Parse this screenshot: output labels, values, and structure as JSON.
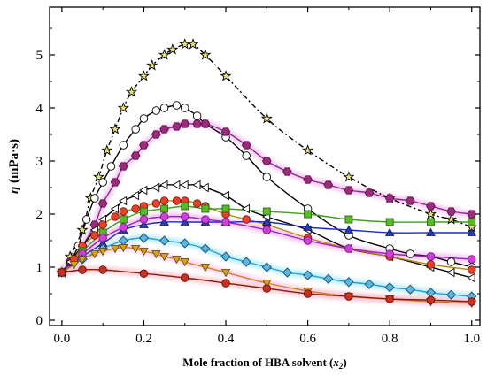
{
  "chart_data": {
    "type": "scatter",
    "xlabel": {
      "pre": "Mole fraction of HBA solvent (",
      "var": "x",
      "sub": "2",
      "post": ")"
    },
    "ylabel": {
      "sym": "η",
      "unit": " (mPa·s)"
    },
    "xlim": [
      -0.03,
      1.02
    ],
    "ylim": [
      -0.1,
      5.9
    ],
    "xticks": [
      "0.0",
      "0.2",
      "0.4",
      "0.6",
      "0.8",
      "1.0"
    ],
    "yticks": [
      "0",
      "1",
      "2",
      "3",
      "4",
      "5"
    ],
    "grid": false,
    "legend": "none",
    "series": [
      {
        "marker": "star",
        "fill": "#e8e27a",
        "stroke": "#000000",
        "line": "#000000",
        "dash": "6,3,2,3",
        "glow": "",
        "points": [
          [
            0.0,
            0.9
          ],
          [
            0.02,
            1.2
          ],
          [
            0.05,
            1.7
          ],
          [
            0.07,
            2.3
          ],
          [
            0.09,
            2.7
          ],
          [
            0.11,
            3.2
          ],
          [
            0.13,
            3.6
          ],
          [
            0.15,
            4.0
          ],
          [
            0.17,
            4.3
          ],
          [
            0.2,
            4.6
          ],
          [
            0.22,
            4.8
          ],
          [
            0.25,
            5.0
          ],
          [
            0.27,
            5.1
          ],
          [
            0.3,
            5.2
          ],
          [
            0.32,
            5.2
          ],
          [
            0.35,
            5.0
          ],
          [
            0.4,
            4.6
          ],
          [
            0.5,
            3.8
          ],
          [
            0.6,
            3.2
          ],
          [
            0.7,
            2.7
          ],
          [
            0.8,
            2.3
          ],
          [
            0.9,
            2.0
          ],
          [
            0.95,
            1.9
          ],
          [
            1.0,
            1.75
          ]
        ]
      },
      {
        "marker": "circle",
        "fill": "#ffffff",
        "stroke": "#000000",
        "line": "#000000",
        "dash": "",
        "glow": "",
        "points": [
          [
            0.0,
            0.9
          ],
          [
            0.02,
            1.1
          ],
          [
            0.04,
            1.4
          ],
          [
            0.06,
            1.9
          ],
          [
            0.08,
            2.3
          ],
          [
            0.1,
            2.6
          ],
          [
            0.12,
            2.9
          ],
          [
            0.15,
            3.3
          ],
          [
            0.18,
            3.6
          ],
          [
            0.2,
            3.8
          ],
          [
            0.23,
            3.95
          ],
          [
            0.25,
            4.0
          ],
          [
            0.28,
            4.05
          ],
          [
            0.3,
            4.0
          ],
          [
            0.33,
            3.85
          ],
          [
            0.35,
            3.7
          ],
          [
            0.4,
            3.45
          ],
          [
            0.45,
            3.1
          ],
          [
            0.5,
            2.7
          ],
          [
            0.6,
            2.1
          ],
          [
            0.7,
            1.6
          ],
          [
            0.8,
            1.35
          ],
          [
            0.85,
            1.25
          ],
          [
            0.9,
            1.2
          ],
          [
            0.95,
            1.1
          ],
          [
            1.0,
            1.0
          ]
        ]
      },
      {
        "marker": "hexagon",
        "fill": "#9c2b7c",
        "stroke": "#5a1448",
        "line": "#8a2a8a",
        "dash": "",
        "glow": "#f2b8ec",
        "points": [
          [
            0.0,
            0.9
          ],
          [
            0.02,
            1.1
          ],
          [
            0.05,
            1.4
          ],
          [
            0.08,
            1.8
          ],
          [
            0.1,
            2.2
          ],
          [
            0.13,
            2.6
          ],
          [
            0.15,
            2.9
          ],
          [
            0.18,
            3.1
          ],
          [
            0.2,
            3.3
          ],
          [
            0.23,
            3.5
          ],
          [
            0.25,
            3.6
          ],
          [
            0.28,
            3.65
          ],
          [
            0.3,
            3.7
          ],
          [
            0.33,
            3.7
          ],
          [
            0.35,
            3.7
          ],
          [
            0.4,
            3.55
          ],
          [
            0.45,
            3.3
          ],
          [
            0.5,
            3.0
          ],
          [
            0.55,
            2.8
          ],
          [
            0.6,
            2.65
          ],
          [
            0.65,
            2.55
          ],
          [
            0.7,
            2.45
          ],
          [
            0.75,
            2.4
          ],
          [
            0.8,
            2.3
          ],
          [
            0.85,
            2.25
          ],
          [
            0.9,
            2.15
          ],
          [
            0.95,
            2.05
          ],
          [
            1.0,
            2.0
          ]
        ]
      },
      {
        "marker": "triangle-left",
        "fill": "#ffffff",
        "stroke": "#000000",
        "line": "#000000",
        "dash": "",
        "glow": "",
        "points": [
          [
            0.0,
            0.9
          ],
          [
            0.02,
            1.1
          ],
          [
            0.05,
            1.4
          ],
          [
            0.08,
            1.7
          ],
          [
            0.1,
            1.9
          ],
          [
            0.13,
            2.1
          ],
          [
            0.15,
            2.25
          ],
          [
            0.18,
            2.35
          ],
          [
            0.2,
            2.45
          ],
          [
            0.23,
            2.5
          ],
          [
            0.25,
            2.55
          ],
          [
            0.28,
            2.55
          ],
          [
            0.3,
            2.55
          ],
          [
            0.33,
            2.55
          ],
          [
            0.35,
            2.5
          ],
          [
            0.4,
            2.35
          ],
          [
            0.45,
            2.1
          ],
          [
            0.5,
            1.95
          ],
          [
            0.6,
            1.7
          ],
          [
            0.7,
            1.35
          ],
          [
            0.8,
            1.2
          ],
          [
            0.9,
            1.0
          ],
          [
            0.95,
            0.9
          ],
          [
            1.0,
            0.8
          ]
        ]
      },
      {
        "marker": "circle",
        "fill": "#e8402a",
        "stroke": "#7a1a0a",
        "line": "#b8860b",
        "dash": "",
        "glow": "",
        "points": [
          [
            0.0,
            0.9
          ],
          [
            0.03,
            1.15
          ],
          [
            0.05,
            1.4
          ],
          [
            0.08,
            1.6
          ],
          [
            0.1,
            1.8
          ],
          [
            0.13,
            1.95
          ],
          [
            0.15,
            2.05
          ],
          [
            0.18,
            2.1
          ],
          [
            0.2,
            2.15
          ],
          [
            0.23,
            2.2
          ],
          [
            0.25,
            2.25
          ],
          [
            0.28,
            2.25
          ],
          [
            0.3,
            2.25
          ],
          [
            0.33,
            2.2
          ],
          [
            0.35,
            2.15
          ],
          [
            0.4,
            2.0
          ],
          [
            0.45,
            1.9
          ],
          [
            0.5,
            1.8
          ],
          [
            0.6,
            1.55
          ],
          [
            0.7,
            1.35
          ],
          [
            0.8,
            1.2
          ],
          [
            0.9,
            1.05
          ],
          [
            1.0,
            0.95
          ]
        ]
      },
      {
        "marker": "square",
        "fill": "#5ab82a",
        "stroke": "#2a6a10",
        "line": "#3fa020",
        "dash": "",
        "glow": "",
        "points": [
          [
            0.0,
            0.9
          ],
          [
            0.05,
            1.3
          ],
          [
            0.1,
            1.65
          ],
          [
            0.15,
            1.9
          ],
          [
            0.2,
            2.05
          ],
          [
            0.25,
            2.1
          ],
          [
            0.3,
            2.15
          ],
          [
            0.35,
            2.1
          ],
          [
            0.4,
            2.1
          ],
          [
            0.5,
            2.05
          ],
          [
            0.6,
            2.0
          ],
          [
            0.7,
            1.9
          ],
          [
            0.8,
            1.85
          ],
          [
            0.9,
            1.85
          ],
          [
            1.0,
            1.85
          ]
        ]
      },
      {
        "marker": "triangle",
        "fill": "#2a3ab8",
        "stroke": "#0a1a6a",
        "line": "#1a2ad0",
        "dash": "",
        "glow": "",
        "points": [
          [
            0.0,
            0.9
          ],
          [
            0.05,
            1.2
          ],
          [
            0.1,
            1.45
          ],
          [
            0.15,
            1.7
          ],
          [
            0.2,
            1.8
          ],
          [
            0.25,
            1.85
          ],
          [
            0.3,
            1.85
          ],
          [
            0.35,
            1.85
          ],
          [
            0.4,
            1.85
          ],
          [
            0.5,
            1.85
          ],
          [
            0.6,
            1.75
          ],
          [
            0.7,
            1.7
          ],
          [
            0.8,
            1.65
          ],
          [
            0.9,
            1.65
          ],
          [
            1.0,
            1.65
          ]
        ]
      },
      {
        "marker": "circle",
        "fill": "#d040d8",
        "stroke": "#7a1a80",
        "line": "#a020c0",
        "dash": "",
        "glow": "#f0b0f0",
        "points": [
          [
            0.0,
            0.9
          ],
          [
            0.05,
            1.25
          ],
          [
            0.1,
            1.55
          ],
          [
            0.15,
            1.75
          ],
          [
            0.2,
            1.9
          ],
          [
            0.25,
            1.95
          ],
          [
            0.3,
            1.95
          ],
          [
            0.35,
            1.9
          ],
          [
            0.4,
            1.85
          ],
          [
            0.5,
            1.7
          ],
          [
            0.6,
            1.5
          ],
          [
            0.7,
            1.35
          ],
          [
            0.8,
            1.25
          ],
          [
            0.9,
            1.2
          ],
          [
            1.0,
            1.15
          ]
        ]
      },
      {
        "marker": "diamond",
        "fill": "#5ab8e0",
        "stroke": "#1a4a6a",
        "line": "#2aa0d0",
        "dash": "",
        "glow": "#a8e8f8",
        "points": [
          [
            0.0,
            0.9
          ],
          [
            0.05,
            1.15
          ],
          [
            0.1,
            1.35
          ],
          [
            0.15,
            1.5
          ],
          [
            0.2,
            1.55
          ],
          [
            0.25,
            1.5
          ],
          [
            0.3,
            1.45
          ],
          [
            0.35,
            1.35
          ],
          [
            0.4,
            1.2
          ],
          [
            0.45,
            1.1
          ],
          [
            0.5,
            1.0
          ],
          [
            0.55,
            0.9
          ],
          [
            0.6,
            0.85
          ],
          [
            0.65,
            0.78
          ],
          [
            0.7,
            0.72
          ],
          [
            0.75,
            0.68
          ],
          [
            0.8,
            0.62
          ],
          [
            0.85,
            0.58
          ],
          [
            0.9,
            0.52
          ],
          [
            0.95,
            0.48
          ],
          [
            1.0,
            0.45
          ]
        ]
      },
      {
        "marker": "triangle-down",
        "fill": "#d8a020",
        "stroke": "#6a4a0a",
        "line": "#d08020",
        "dash": "",
        "glow": "#f8c8e8",
        "points": [
          [
            0.0,
            0.9
          ],
          [
            0.03,
            1.05
          ],
          [
            0.05,
            1.15
          ],
          [
            0.08,
            1.25
          ],
          [
            0.1,
            1.3
          ],
          [
            0.13,
            1.35
          ],
          [
            0.15,
            1.37
          ],
          [
            0.18,
            1.35
          ],
          [
            0.2,
            1.3
          ],
          [
            0.23,
            1.25
          ],
          [
            0.25,
            1.2
          ],
          [
            0.28,
            1.15
          ],
          [
            0.3,
            1.1
          ],
          [
            0.35,
            1.0
          ],
          [
            0.4,
            0.9
          ],
          [
            0.5,
            0.7
          ],
          [
            0.6,
            0.55
          ],
          [
            0.7,
            0.45
          ],
          [
            0.8,
            0.4
          ],
          [
            0.9,
            0.35
          ],
          [
            1.0,
            0.32
          ]
        ]
      },
      {
        "marker": "circle",
        "fill": "#c83020",
        "stroke": "#6a0a0a",
        "line": "#8a1a0a",
        "dash": "",
        "glow": "#f8c0c8",
        "points": [
          [
            0.0,
            0.9
          ],
          [
            0.05,
            0.95
          ],
          [
            0.1,
            0.95
          ],
          [
            0.2,
            0.88
          ],
          [
            0.3,
            0.8
          ],
          [
            0.4,
            0.7
          ],
          [
            0.5,
            0.6
          ],
          [
            0.6,
            0.5
          ],
          [
            0.7,
            0.45
          ],
          [
            0.8,
            0.4
          ],
          [
            0.9,
            0.38
          ],
          [
            1.0,
            0.35
          ]
        ]
      }
    ]
  }
}
